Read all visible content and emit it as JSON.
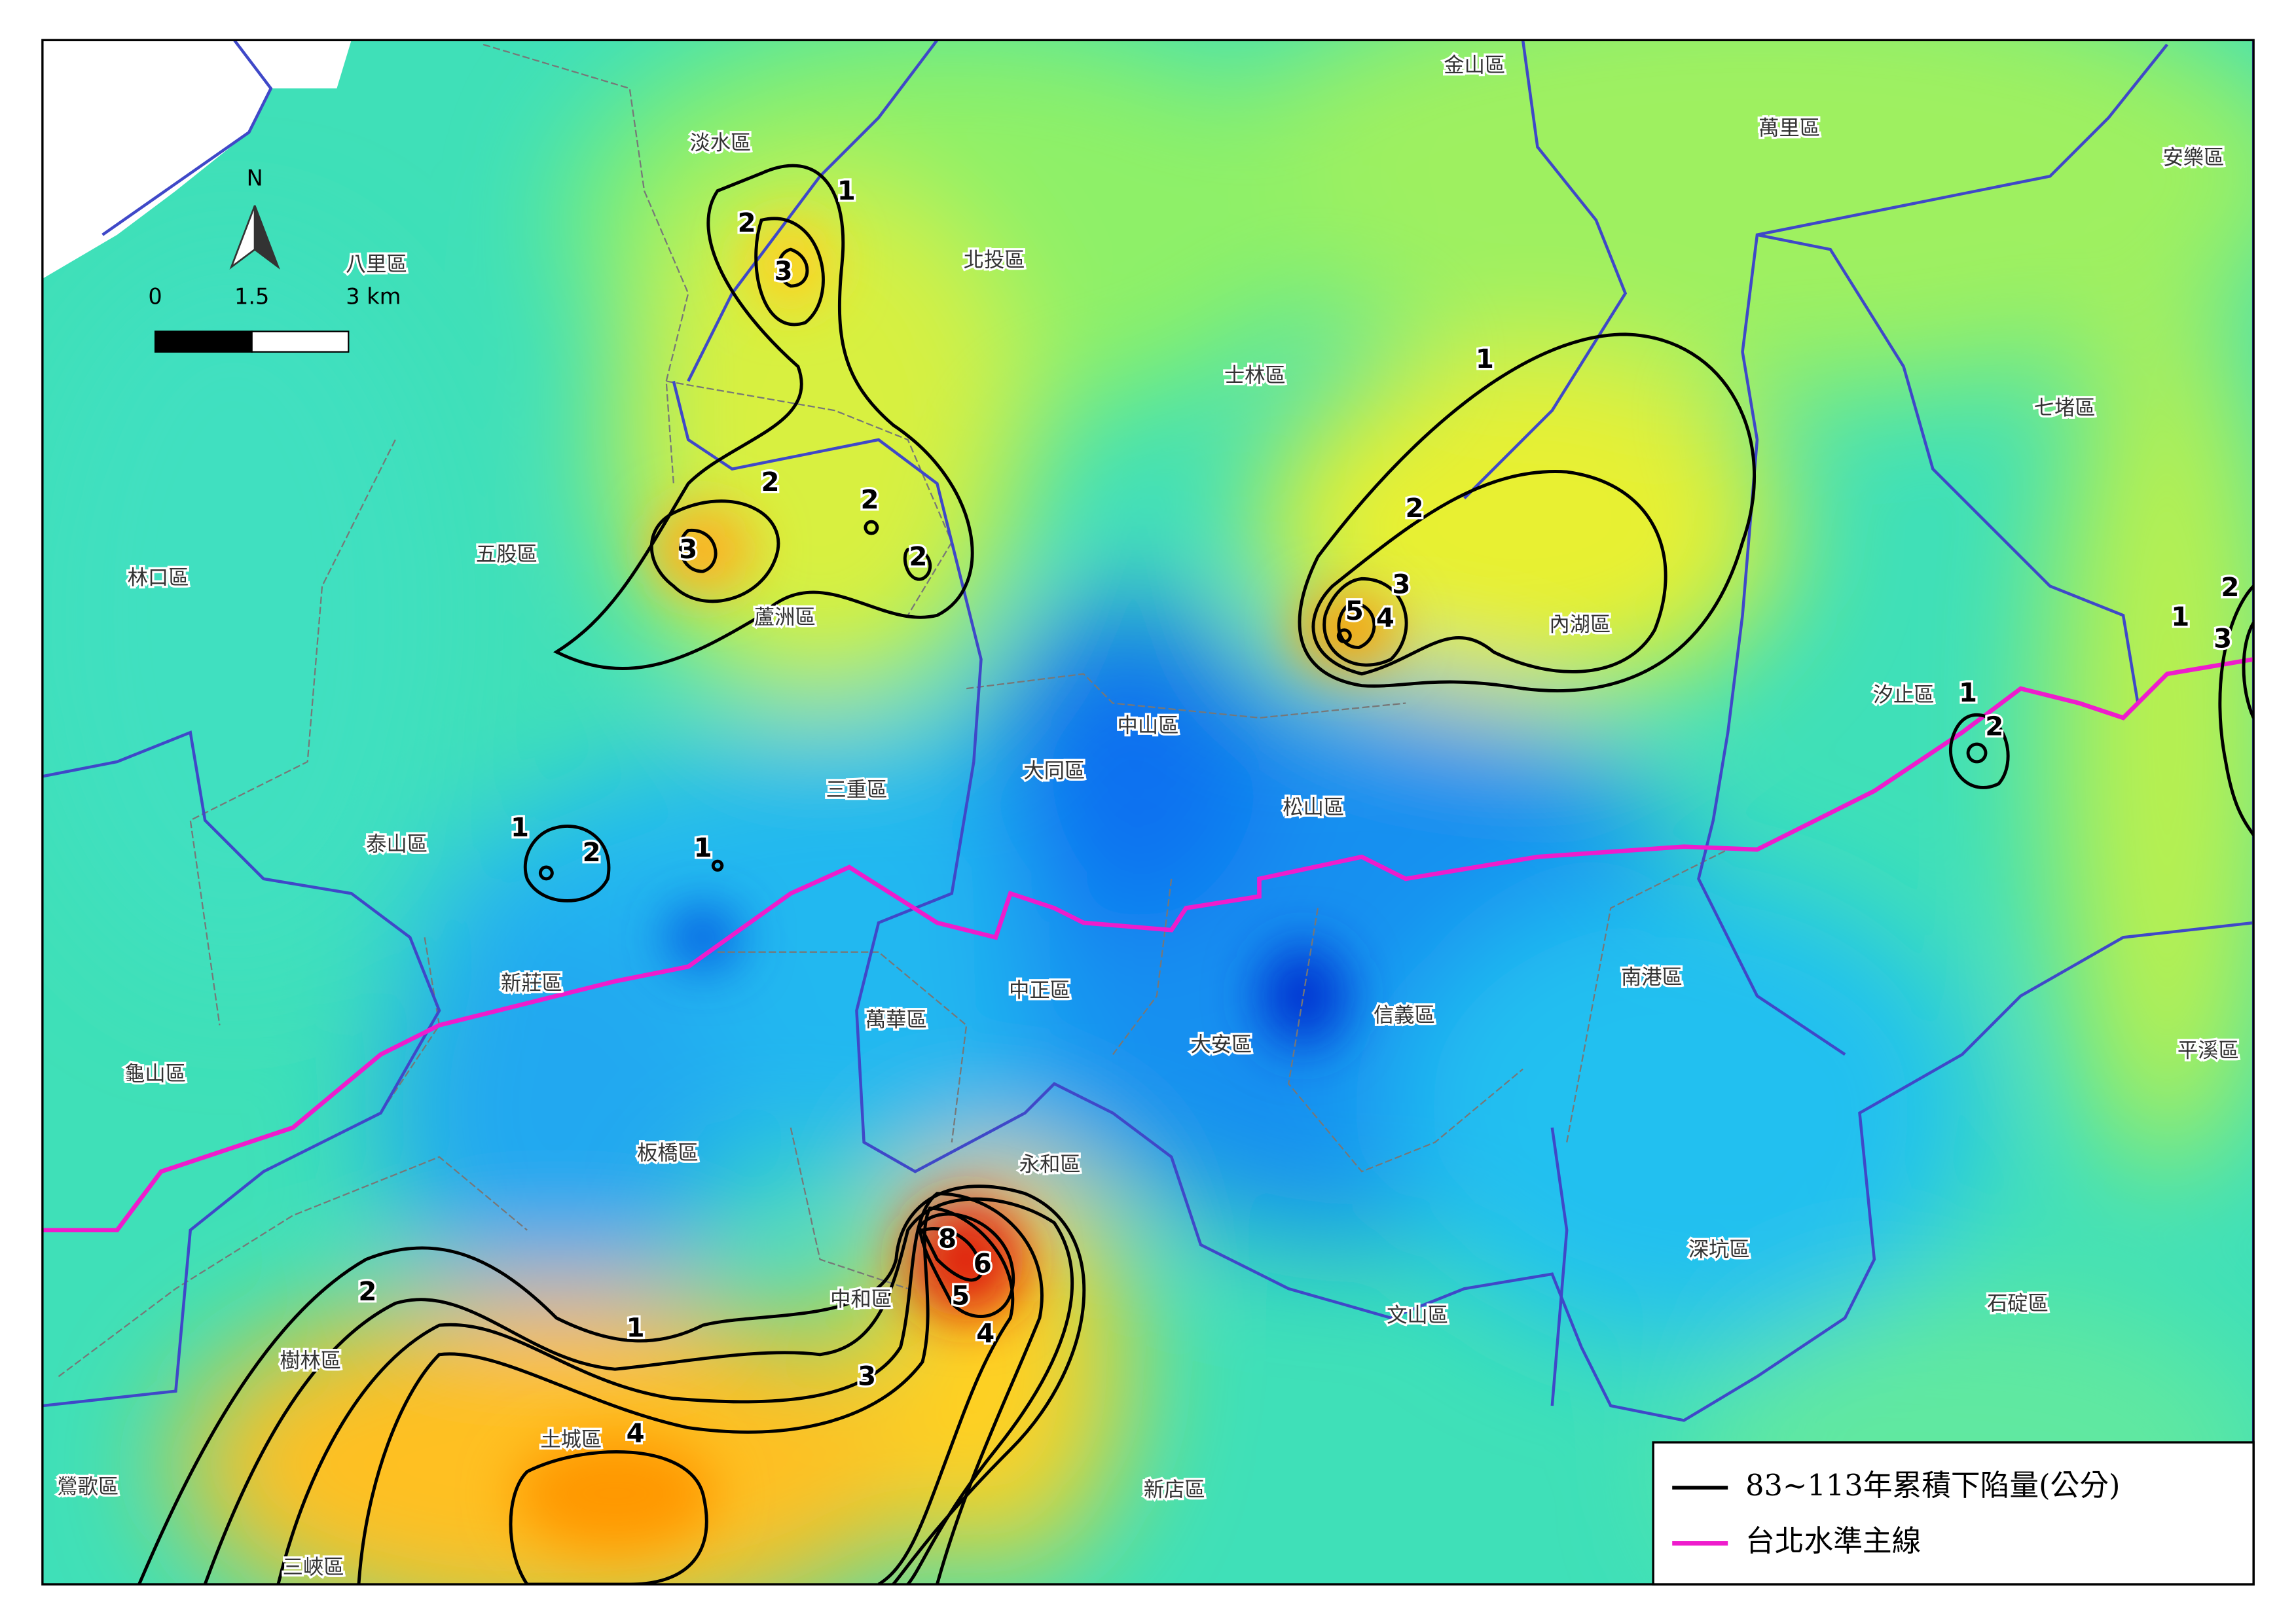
{
  "map": {
    "north": "N",
    "scale": {
      "ticks": [
        "0",
        "1.5",
        "3 km"
      ]
    },
    "districts": [
      "淡水區",
      "八里區",
      "北投區",
      "金山區",
      "萬里區",
      "安樂區",
      "士林區",
      "七堵區",
      "五股區",
      "林口區",
      "蘆洲區",
      "內湖區",
      "汐止區",
      "中山區",
      "大同區",
      "三重區",
      "松山區",
      "泰山區",
      "新莊區",
      "南港區",
      "萬華區",
      "中正區",
      "信義區",
      "大安區",
      "平溪區",
      "龜山區",
      "板橋區",
      "永和區",
      "深坑區",
      "中和區",
      "石碇區",
      "文山區",
      "樹林區",
      "土城區",
      "新店區",
      "鶯歌區",
      "三峽區"
    ],
    "contour_labels": [
      1,
      2,
      3,
      2,
      2,
      3,
      2,
      1,
      2,
      3,
      4,
      5,
      1,
      2,
      1,
      2,
      3,
      1,
      2,
      1,
      8,
      6,
      5,
      4,
      4,
      3,
      2,
      1
    ]
  },
  "legend": {
    "items": [
      "83~113年累積下陷量(公分)",
      "台北水準主線"
    ]
  }
}
